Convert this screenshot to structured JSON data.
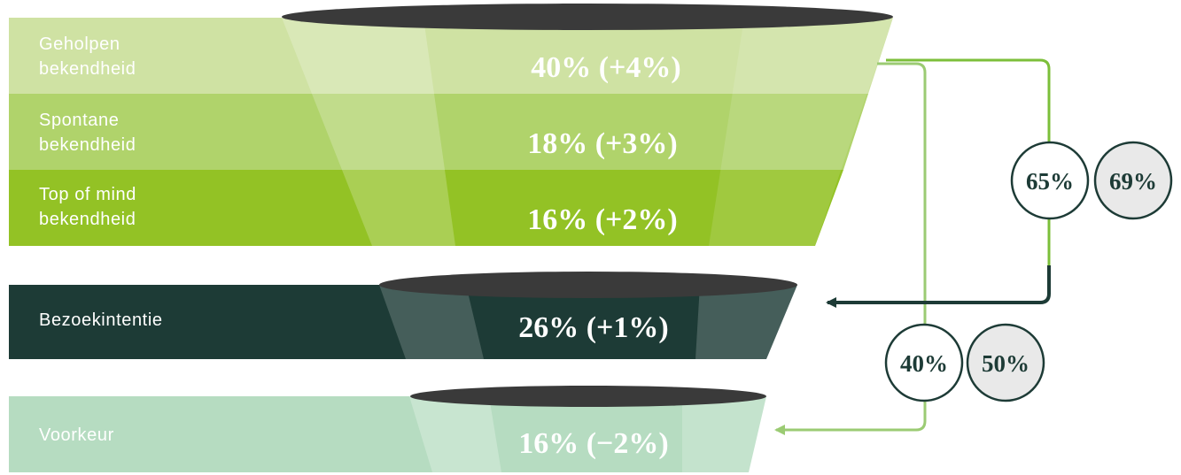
{
  "colors": {
    "band1": "#cfe2a3",
    "band2": "#b0d36b",
    "band3": "#93c225",
    "band4": "#1d3b36",
    "band5": "#b6dcc1",
    "ellipse": "#3a3a3a",
    "arrow_dark": "#1d3b36",
    "arrow_light": "#9bcb73",
    "circle_fill_outline": "#ffffff",
    "circle_fill_grey": "#e9e9e9"
  },
  "funnel": {
    "levels": [
      {
        "label_line1": "Geholpen",
        "label_line2": "bekendheid",
        "value": "40% (+4%)"
      },
      {
        "label_line1": "Spontane",
        "label_line2": "bekendheid",
        "value": "18% (+3%)"
      },
      {
        "label_line1": "Top of mind",
        "label_line2": "bekendheid",
        "value": "16% (+2%)"
      },
      {
        "label_line1": "Bezoekintentie",
        "label_line2": "",
        "value": "26% (+1%)"
      },
      {
        "label_line1": "Voorkeur",
        "label_line2": "",
        "value": "16% (−2%)"
      }
    ]
  },
  "conversions": {
    "to_intention": {
      "current": "65%",
      "benchmark": "69%"
    },
    "to_preference": {
      "current": "40%",
      "benchmark": "50%"
    }
  }
}
